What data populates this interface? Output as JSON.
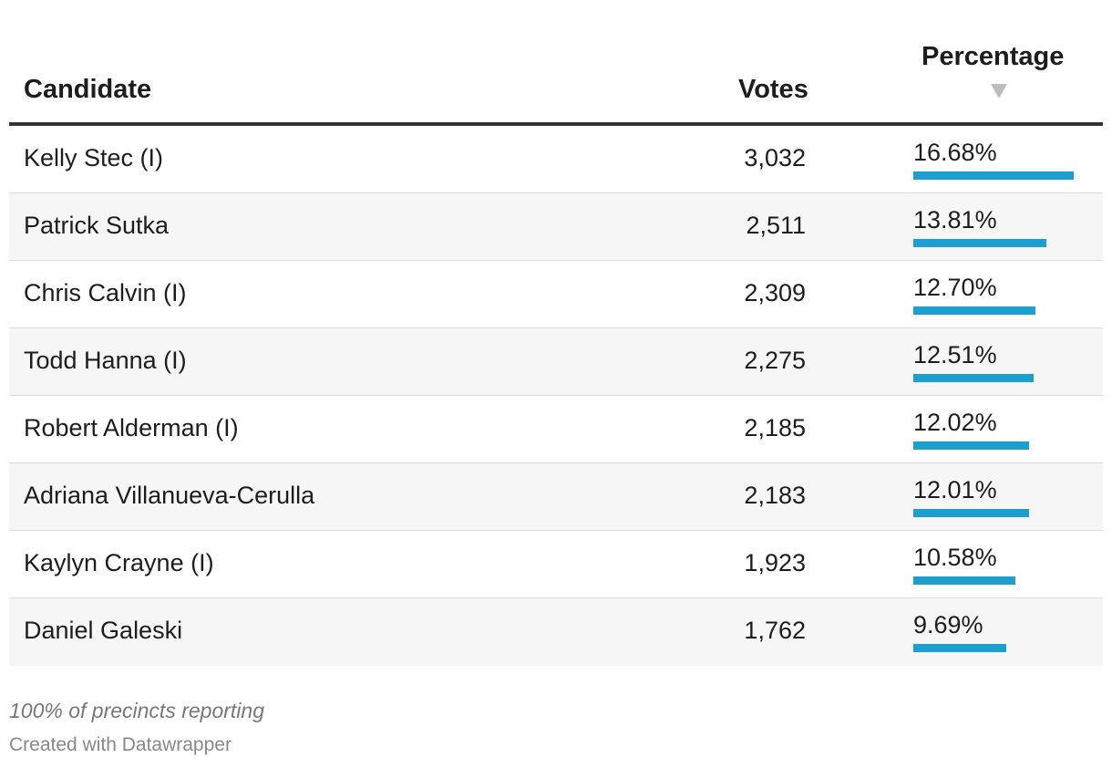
{
  "chart_data": {
    "type": "table",
    "columns": [
      "Candidate",
      "Votes",
      "Percentage"
    ],
    "sort": {
      "column": "Percentage",
      "direction": "descending"
    },
    "rows": [
      {
        "candidate": "Kelly Stec (I)",
        "votes": "3,032",
        "percentage": "16.68%",
        "pct_value": 16.68
      },
      {
        "candidate": "Patrick Sutka",
        "votes": "2,511",
        "percentage": "13.81%",
        "pct_value": 13.81
      },
      {
        "candidate": "Chris Calvin (I)",
        "votes": "2,309",
        "percentage": "12.70%",
        "pct_value": 12.7
      },
      {
        "candidate": "Todd Hanna (I)",
        "votes": "2,275",
        "percentage": "12.51%",
        "pct_value": 12.51
      },
      {
        "candidate": "Robert Alderman (I)",
        "votes": "2,185",
        "percentage": "12.02%",
        "pct_value": 12.02
      },
      {
        "candidate": "Adriana Villanueva-Cerulla",
        "votes": "2,183",
        "percentage": "12.01%",
        "pct_value": 12.01
      },
      {
        "candidate": "Kaylyn Crayne (I)",
        "votes": "1,923",
        "percentage": "10.58%",
        "pct_value": 10.58
      },
      {
        "candidate": "Daniel Galeski",
        "votes": "1,762",
        "percentage": "9.69%",
        "pct_value": 9.69
      }
    ],
    "bar_color": "#1a9fcf",
    "bar_max_value": 16.68
  },
  "header": {
    "candidate": "Candidate",
    "votes": "Votes",
    "percentage": "Percentage"
  },
  "notes": "100% of precincts reporting",
  "credit": "Created with Datawrapper"
}
